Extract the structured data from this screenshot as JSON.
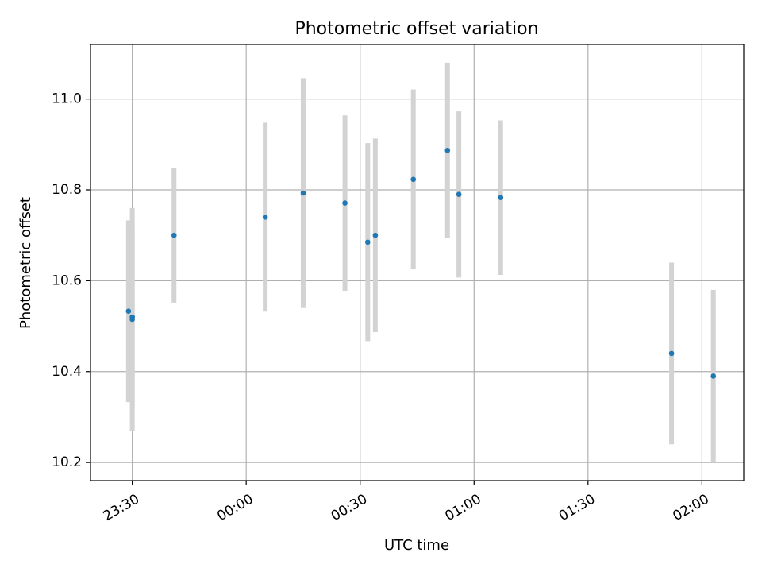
{
  "chart_data": {
    "type": "scatter",
    "title": "Photometric offset variation",
    "xlabel": "UTC time",
    "ylabel": "Photometric offset",
    "x_ticks": [
      "23:30",
      "00:00",
      "00:30",
      "01:00",
      "01:30",
      "02:00"
    ],
    "y_ticks": [
      "10.2",
      "10.4",
      "10.6",
      "10.8",
      "11.0"
    ],
    "ylim": [
      10.16,
      11.12
    ],
    "xlim": [
      "23:19",
      "02:11"
    ],
    "grid": true,
    "legend": "none",
    "series": [
      {
        "points": [
          {
            "x": "23:29",
            "y": 10.533,
            "err": 0.2
          },
          {
            "x": "23:30",
            "y": 10.515,
            "err": 0.245
          },
          {
            "x": "23:30",
            "y": 10.52,
            "err": 0.2
          },
          {
            "x": "23:41",
            "y": 10.7,
            "err": 0.148
          },
          {
            "x": "00:05",
            "y": 10.74,
            "err": 0.208
          },
          {
            "x": "00:15",
            "y": 10.793,
            "err": 0.253
          },
          {
            "x": "00:26",
            "y": 10.771,
            "err": 0.193
          },
          {
            "x": "00:32",
            "y": 10.685,
            "err": 0.218
          },
          {
            "x": "00:34",
            "y": 10.7,
            "err": 0.213
          },
          {
            "x": "00:44",
            "y": 10.823,
            "err": 0.198
          },
          {
            "x": "00:53",
            "y": 10.887,
            "err": 0.193
          },
          {
            "x": "00:56",
            "y": 10.79,
            "err": 0.183
          },
          {
            "x": "01:07",
            "y": 10.783,
            "err": 0.17
          },
          {
            "x": "01:52",
            "y": 10.44,
            "err": 0.2
          },
          {
            "x": "02:03",
            "y": 10.39,
            "err": 0.19
          }
        ]
      }
    ],
    "colors": {
      "point": "#1f77b4",
      "errorbar": "#d3d3d3",
      "grid": "#b0b0b0",
      "axes": "#000000"
    }
  }
}
